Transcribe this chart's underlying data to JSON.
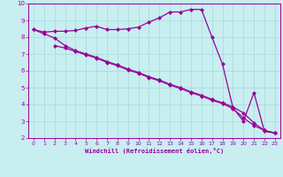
{
  "line1_x": [
    0,
    1,
    2,
    3,
    4,
    5,
    6,
    7,
    8,
    9,
    10,
    11,
    12,
    13,
    14,
    15,
    16,
    17,
    18,
    19,
    20,
    21,
    22,
    23
  ],
  "line1_y": [
    8.45,
    8.3,
    8.35,
    8.35,
    8.4,
    8.55,
    8.65,
    8.45,
    8.45,
    8.5,
    8.6,
    8.9,
    9.15,
    9.5,
    9.5,
    9.65,
    9.65,
    8.0,
    6.4,
    3.8,
    3.0,
    4.7,
    2.4,
    2.3
  ],
  "line2_x": [
    0,
    1,
    2,
    3,
    4,
    5,
    6,
    7,
    8,
    9,
    10,
    11,
    12,
    13,
    14,
    15,
    16,
    17,
    18,
    19,
    20,
    21,
    22,
    23
  ],
  "line2_y": [
    8.45,
    8.2,
    7.95,
    7.5,
    7.2,
    7.0,
    6.8,
    6.55,
    6.35,
    6.1,
    5.9,
    5.65,
    5.45,
    5.2,
    5.0,
    4.75,
    4.55,
    4.3,
    4.1,
    3.85,
    3.5,
    2.9,
    2.45,
    2.3
  ],
  "line3_x": [
    2,
    3,
    4,
    5,
    6,
    7,
    8,
    9,
    10,
    11,
    12,
    13,
    14,
    15,
    16,
    17,
    18,
    19,
    20,
    21,
    22,
    23
  ],
  "line3_y": [
    7.5,
    7.35,
    7.15,
    6.95,
    6.75,
    6.5,
    6.3,
    6.05,
    5.85,
    5.6,
    5.4,
    5.15,
    4.95,
    4.7,
    4.5,
    4.25,
    4.05,
    3.75,
    3.2,
    2.75,
    2.45,
    2.3
  ],
  "color": "#990099",
  "bg_color": "#c8eef0",
  "grid_color": "#aadddd",
  "xlabel": "Windchill (Refroidissement éolien,°C)",
  "xlim": [
    -0.5,
    23.5
  ],
  "ylim": [
    2,
    10
  ],
  "yticks": [
    2,
    3,
    4,
    5,
    6,
    7,
    8,
    9,
    10
  ],
  "xticks": [
    0,
    1,
    2,
    3,
    4,
    5,
    6,
    7,
    8,
    9,
    10,
    11,
    12,
    13,
    14,
    15,
    16,
    17,
    18,
    19,
    20,
    21,
    22,
    23
  ],
  "marker": "D",
  "marker_size": 2.0,
  "linewidth": 0.9
}
